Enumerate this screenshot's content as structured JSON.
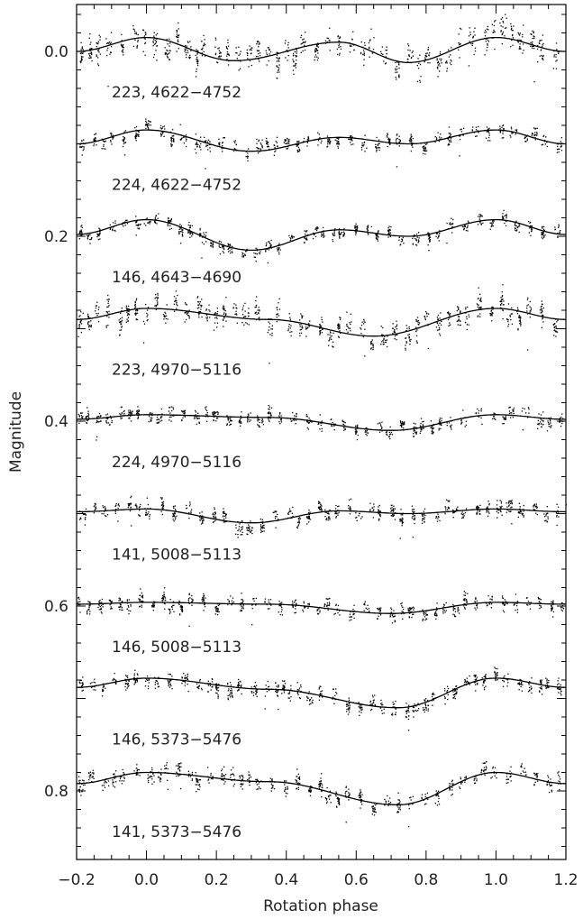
{
  "chart_data": {
    "type": "scatter",
    "title": "",
    "xlabel": "Rotation phase",
    "ylabel": "Magnitude",
    "xlim": [
      -0.2,
      1.2
    ],
    "ylim": [
      -0.05,
      0.88
    ],
    "y_inverted": true,
    "x_ticks": [
      -0.2,
      0.0,
      0.2,
      0.4,
      0.6,
      0.8,
      1.0,
      1.2
    ],
    "x_tick_labels": [
      "−0.2",
      "0.0",
      "0.2",
      "0.4",
      "0.6",
      "0.8",
      "1.0",
      "1.2"
    ],
    "y_ticks": [
      0.0,
      0.2,
      0.4,
      0.6,
      0.8
    ],
    "y_tick_labels": [
      "0.0",
      "0.2",
      "0.4",
      "0.6",
      "0.8"
    ],
    "grid": false,
    "legend": "none",
    "point_color": "#000000",
    "curve_color": "#000000",
    "series": [
      {
        "name": "223, 4622−4752",
        "offset": 0.0,
        "fit": {
          "phase": [
            -0.2,
            0.0,
            0.25,
            0.55,
            0.75,
            1.0,
            1.2
          ],
          "mag": [
            0.0,
            -0.015,
            0.01,
            -0.01,
            0.012,
            -0.015,
            0.0
          ]
        },
        "scatter": 0.018
      },
      {
        "name": "224, 4622−4752",
        "offset": 0.1,
        "fit": {
          "phase": [
            -0.2,
            0.0,
            0.3,
            0.55,
            0.75,
            1.0,
            1.2
          ],
          "mag": [
            0.1,
            0.085,
            0.108,
            0.093,
            0.1,
            0.085,
            0.1
          ]
        },
        "scatter": 0.01
      },
      {
        "name": "146, 4643−4690",
        "offset": 0.2,
        "fit": {
          "phase": [
            -0.2,
            0.0,
            0.3,
            0.55,
            0.75,
            1.0,
            1.2
          ],
          "mag": [
            0.198,
            0.182,
            0.215,
            0.193,
            0.2,
            0.182,
            0.198
          ]
        },
        "scatter": 0.008
      },
      {
        "name": "223, 4970−5116",
        "offset": 0.3,
        "fit": {
          "phase": [
            -0.2,
            0.0,
            0.35,
            0.65,
            1.0,
            1.2
          ],
          "mag": [
            0.29,
            0.278,
            0.29,
            0.308,
            0.278,
            0.29
          ]
        },
        "scatter": 0.016
      },
      {
        "name": "224, 4970−5116",
        "offset": 0.4,
        "fit": {
          "phase": [
            -0.2,
            0.0,
            0.35,
            0.7,
            1.0,
            1.2
          ],
          "mag": [
            0.398,
            0.393,
            0.396,
            0.41,
            0.393,
            0.398
          ]
        },
        "scatter": 0.009
      },
      {
        "name": "141, 5008−5113",
        "offset": 0.5,
        "fit": {
          "phase": [
            -0.2,
            0.0,
            0.3,
            0.55,
            0.75,
            1.0,
            1.2
          ],
          "mag": [
            0.498,
            0.495,
            0.51,
            0.497,
            0.5,
            0.495,
            0.498
          ]
        },
        "scatter": 0.01
      },
      {
        "name": "146, 5008−5113",
        "offset": 0.6,
        "fit": {
          "phase": [
            -0.2,
            0.0,
            0.35,
            0.7,
            1.0,
            1.2
          ],
          "mag": [
            0.598,
            0.596,
            0.598,
            0.608,
            0.596,
            0.598
          ]
        },
        "scatter": 0.01
      },
      {
        "name": "146, 5373−5476",
        "offset": 0.7,
        "fit": {
          "phase": [
            -0.2,
            0.0,
            0.35,
            0.72,
            1.0,
            1.2
          ],
          "mag": [
            0.688,
            0.678,
            0.69,
            0.71,
            0.678,
            0.688
          ]
        },
        "scatter": 0.01
      },
      {
        "name": "141, 5373−5476",
        "offset": 0.8,
        "fit": {
          "phase": [
            -0.2,
            0.0,
            0.35,
            0.72,
            1.0,
            1.2
          ],
          "mag": [
            0.792,
            0.78,
            0.79,
            0.815,
            0.78,
            0.792
          ]
        },
        "scatter": 0.011
      }
    ]
  }
}
